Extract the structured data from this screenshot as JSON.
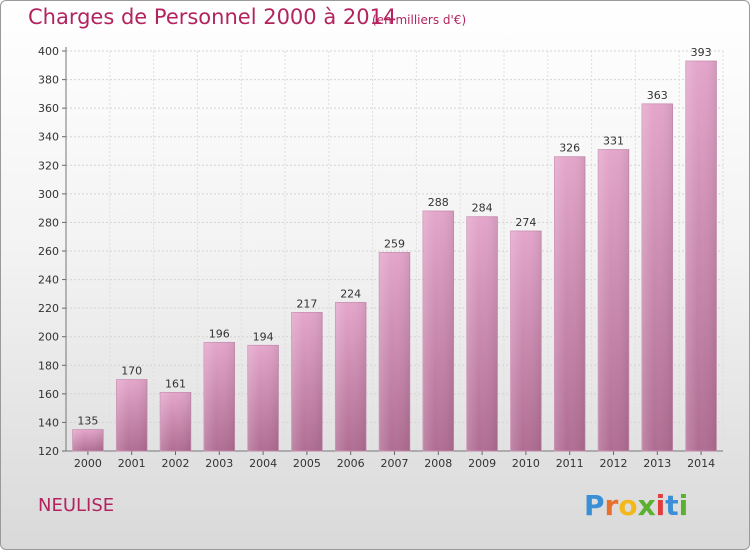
{
  "header": {
    "title": "Charges de Personnel 2000 à 2014",
    "subtitle": "(en milliers d'€)"
  },
  "footer": {
    "commune": "NEULISE",
    "logo_letters": [
      "P",
      "r",
      "o",
      "x",
      "i",
      "t",
      "i"
    ],
    "logo_colors": [
      "#3a8fd6",
      "#e8702a",
      "#f2b81c",
      "#5bb030",
      "#e23c3c",
      "#3a8fd6",
      "#5bb030"
    ]
  },
  "chart_data": {
    "type": "bar",
    "categories": [
      "2000",
      "2001",
      "2002",
      "2003",
      "2004",
      "2005",
      "2006",
      "2007",
      "2008",
      "2009",
      "2010",
      "2011",
      "2012",
      "2013",
      "2014"
    ],
    "values": [
      135,
      170,
      161,
      196,
      194,
      217,
      224,
      259,
      288,
      284,
      274,
      326,
      331,
      363,
      393
    ],
    "ylim": [
      120,
      400
    ],
    "yticks": [
      120,
      140,
      160,
      180,
      200,
      220,
      240,
      260,
      280,
      300,
      320,
      340,
      360,
      380,
      400
    ],
    "grid": true,
    "bar_color_top": "#e4a6cb",
    "bar_color_bottom": "#b06d93",
    "title": "Charges de Personnel 2000 à 2014",
    "xlabel": "",
    "ylabel": ""
  }
}
